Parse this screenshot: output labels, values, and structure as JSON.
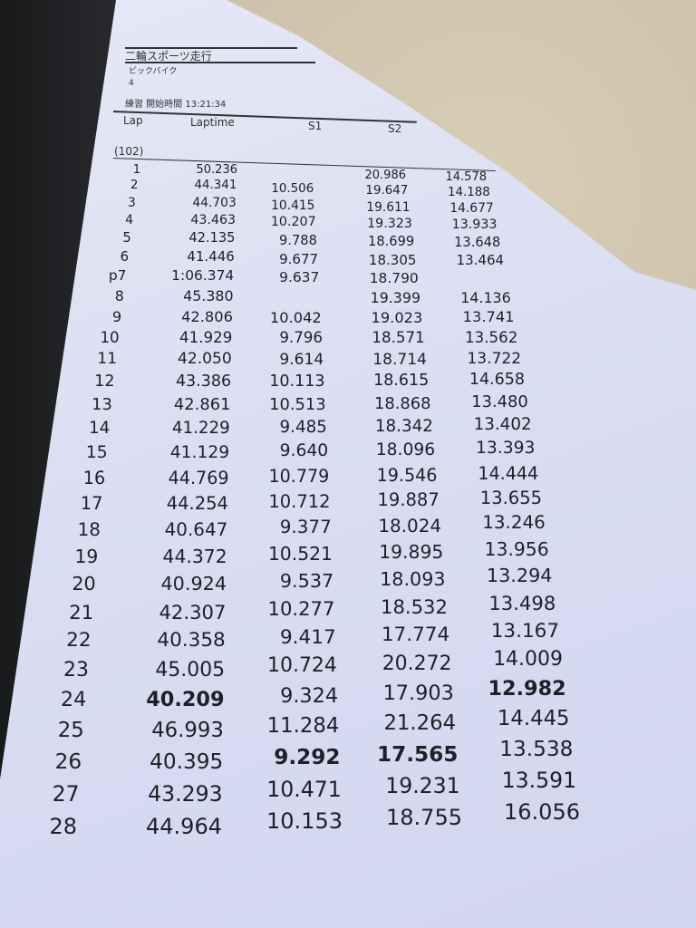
{
  "sheet": {
    "title": "二輪スポーツ走行",
    "class_name": "ビックバイク",
    "number": "4",
    "session": "練習 開始時間 13:21:34",
    "group": "(102)",
    "columns": [
      "Lap",
      "Laptime",
      "S1",
      "S2"
    ]
  },
  "rows": [
    {
      "lap": "1",
      "laptime": "50.236",
      "s1": "",
      "s2": "20.986",
      "s3": "14.578"
    },
    {
      "lap": "2",
      "laptime": "44.341",
      "s1": "10.506",
      "s2": "19.647",
      "s3": "14.188"
    },
    {
      "lap": "3",
      "laptime": "44.703",
      "s1": "10.415",
      "s2": "19.611",
      "s3": "14.677"
    },
    {
      "lap": "4",
      "laptime": "43.463",
      "s1": "10.207",
      "s2": "19.323",
      "s3": "13.933"
    },
    {
      "lap": "5",
      "laptime": "42.135",
      "s1": "9.788",
      "s2": "18.699",
      "s3": "13.648"
    },
    {
      "lap": "6",
      "laptime": "41.446",
      "s1": "9.677",
      "s2": "18.305",
      "s3": "13.464"
    },
    {
      "lap": "p7",
      "laptime": "1:06.374",
      "s1": "9.637",
      "s2": "18.790",
      "s3": ""
    },
    {
      "lap": "8",
      "laptime": "45.380",
      "s1": "",
      "s2": "19.399",
      "s3": "14.136"
    },
    {
      "lap": "9",
      "laptime": "42.806",
      "s1": "10.042",
      "s2": "19.023",
      "s3": "13.741"
    },
    {
      "lap": "10",
      "laptime": "41.929",
      "s1": "9.796",
      "s2": "18.571",
      "s3": "13.562"
    },
    {
      "lap": "11",
      "laptime": "42.050",
      "s1": "9.614",
      "s2": "18.714",
      "s3": "13.722"
    },
    {
      "lap": "12",
      "laptime": "43.386",
      "s1": "10.113",
      "s2": "18.615",
      "s3": "14.658"
    },
    {
      "lap": "13",
      "laptime": "42.861",
      "s1": "10.513",
      "s2": "18.868",
      "s3": "13.480"
    },
    {
      "lap": "14",
      "laptime": "41.229",
      "s1": "9.485",
      "s2": "18.342",
      "s3": "13.402"
    },
    {
      "lap": "15",
      "laptime": "41.129",
      "s1": "9.640",
      "s2": "18.096",
      "s3": "13.393"
    },
    {
      "lap": "16",
      "laptime": "44.769",
      "s1": "10.779",
      "s2": "19.546",
      "s3": "14.444"
    },
    {
      "lap": "17",
      "laptime": "44.254",
      "s1": "10.712",
      "s2": "19.887",
      "s3": "13.655"
    },
    {
      "lap": "18",
      "laptime": "40.647",
      "s1": "9.377",
      "s2": "18.024",
      "s3": "13.246"
    },
    {
      "lap": "19",
      "laptime": "44.372",
      "s1": "10.521",
      "s2": "19.895",
      "s3": "13.956"
    },
    {
      "lap": "20",
      "laptime": "40.924",
      "s1": "9.537",
      "s2": "18.093",
      "s3": "13.294"
    },
    {
      "lap": "21",
      "laptime": "42.307",
      "s1": "10.277",
      "s2": "18.532",
      "s3": "13.498"
    },
    {
      "lap": "22",
      "laptime": "40.358",
      "s1": "9.417",
      "s2": "17.774",
      "s3": "13.167"
    },
    {
      "lap": "23",
      "laptime": "45.005",
      "s1": "10.724",
      "s2": "20.272",
      "s3": "14.009"
    },
    {
      "lap": "24",
      "laptime": "40.209",
      "s1": "9.324",
      "s2": "17.903",
      "s3": "12.982",
      "best": [
        "laptime",
        "s3"
      ]
    },
    {
      "lap": "25",
      "laptime": "46.993",
      "s1": "11.284",
      "s2": "21.264",
      "s3": "14.445"
    },
    {
      "lap": "26",
      "laptime": "40.395",
      "s1": "9.292",
      "s2": "17.565",
      "s3": "13.538",
      "best": [
        "s1",
        "s2"
      ]
    },
    {
      "lap": "27",
      "laptime": "43.293",
      "s1": "10.471",
      "s2": "19.231",
      "s3": "13.591"
    },
    {
      "lap": "28",
      "laptime": "44.964",
      "s1": "10.153",
      "s2": "18.755",
      "s3": "16.056"
    }
  ]
}
